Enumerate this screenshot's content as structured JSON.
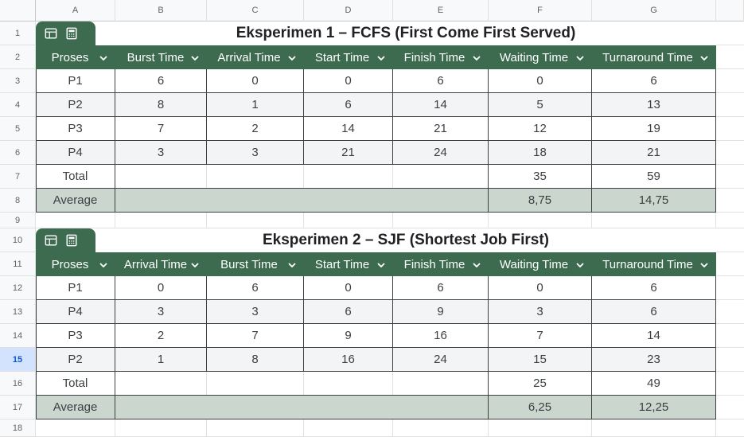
{
  "columns": [
    "A",
    "B",
    "C",
    "D",
    "E",
    "F",
    "G"
  ],
  "rows": [
    "1",
    "2",
    "3",
    "4",
    "5",
    "6",
    "7",
    "8",
    "9",
    "10",
    "11",
    "12",
    "13",
    "14",
    "15",
    "16",
    "17",
    "18"
  ],
  "selected_row": "15",
  "icons": {
    "table": "table-icon",
    "calculator": "calculator-icon",
    "dropdown": "chevron-down-icon"
  },
  "colors": {
    "header_green": "#3d6b50",
    "avg_fill": "#cbd6cf",
    "selected_row": "#d3e3fd"
  },
  "table1": {
    "title": "Eksperimen 1 – FCFS (First Come First Served)",
    "headers": [
      "Proses",
      "Burst Time",
      "Arrival Time",
      "Start Time",
      "Finish Time",
      "Waiting Time",
      "Turnaround Time"
    ],
    "rows": [
      [
        "P1",
        "6",
        "0",
        "0",
        "6",
        "0",
        "6"
      ],
      [
        "P2",
        "8",
        "1",
        "6",
        "14",
        "5",
        "13"
      ],
      [
        "P3",
        "7",
        "2",
        "14",
        "21",
        "12",
        "19"
      ],
      [
        "P4",
        "3",
        "3",
        "21",
        "24",
        "18",
        "21"
      ]
    ],
    "total": {
      "label": "Total",
      "waiting": "35",
      "turnaround": "59"
    },
    "average": {
      "label": "Average",
      "waiting": "8,75",
      "turnaround": "14,75"
    }
  },
  "table2": {
    "title": "Eksperimen 2 – SJF (Shortest Job First)",
    "headers": [
      "Proses",
      "Arrival Time",
      "Burst Time",
      "Start Time",
      "Finish Time",
      "Waiting Time",
      "Turnaround Time"
    ],
    "rows": [
      [
        "P1",
        "0",
        "6",
        "0",
        "6",
        "0",
        "6"
      ],
      [
        "P4",
        "3",
        "3",
        "6",
        "9",
        "3",
        "6"
      ],
      [
        "P3",
        "2",
        "7",
        "9",
        "16",
        "7",
        "14"
      ],
      [
        "P2",
        "1",
        "8",
        "16",
        "24",
        "15",
        "23"
      ]
    ],
    "total": {
      "label": "Total",
      "waiting": "25",
      "turnaround": "49"
    },
    "average": {
      "label": "Average",
      "waiting": "6,25",
      "turnaround": "12,25"
    }
  }
}
